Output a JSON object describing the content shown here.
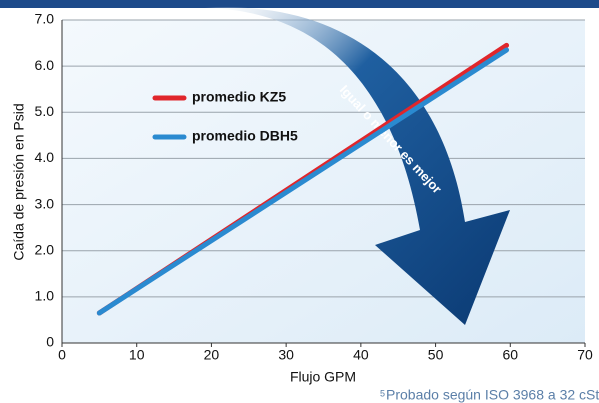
{
  "chart_data": {
    "type": "line",
    "ylabel": "Caída de presión en Psid",
    "xlabel": "Flujo GPM",
    "annotation": "Igual o menor es mejor",
    "footnote_mark": "5",
    "footnote": "Probado según ISO 3968 a 32 cSt.",
    "x": [
      5,
      59.5
    ],
    "series": [
      {
        "name": "promedio KZ5",
        "color": "#e0262b",
        "values": [
          0.65,
          6.45
        ]
      },
      {
        "name": "promedio DBH5",
        "color": "#2a8ad0",
        "values": [
          0.65,
          6.35
        ]
      }
    ],
    "xlim": [
      0,
      70
    ],
    "xticks": [
      0,
      10,
      20,
      30,
      40,
      50,
      60,
      70
    ],
    "ylim": [
      0,
      7
    ],
    "yticks": [
      0,
      {
        "value": 1,
        "label": "1.0"
      },
      {
        "value": 2,
        "label": "2.0"
      },
      {
        "value": 3,
        "label": "3.0"
      },
      {
        "value": 4,
        "label": "4.0"
      },
      {
        "value": 5,
        "label": "5.0"
      },
      {
        "value": 6,
        "label": "6.0"
      },
      {
        "value": 7,
        "label": "7.0"
      }
    ],
    "grid": true,
    "legend": "upper left"
  }
}
